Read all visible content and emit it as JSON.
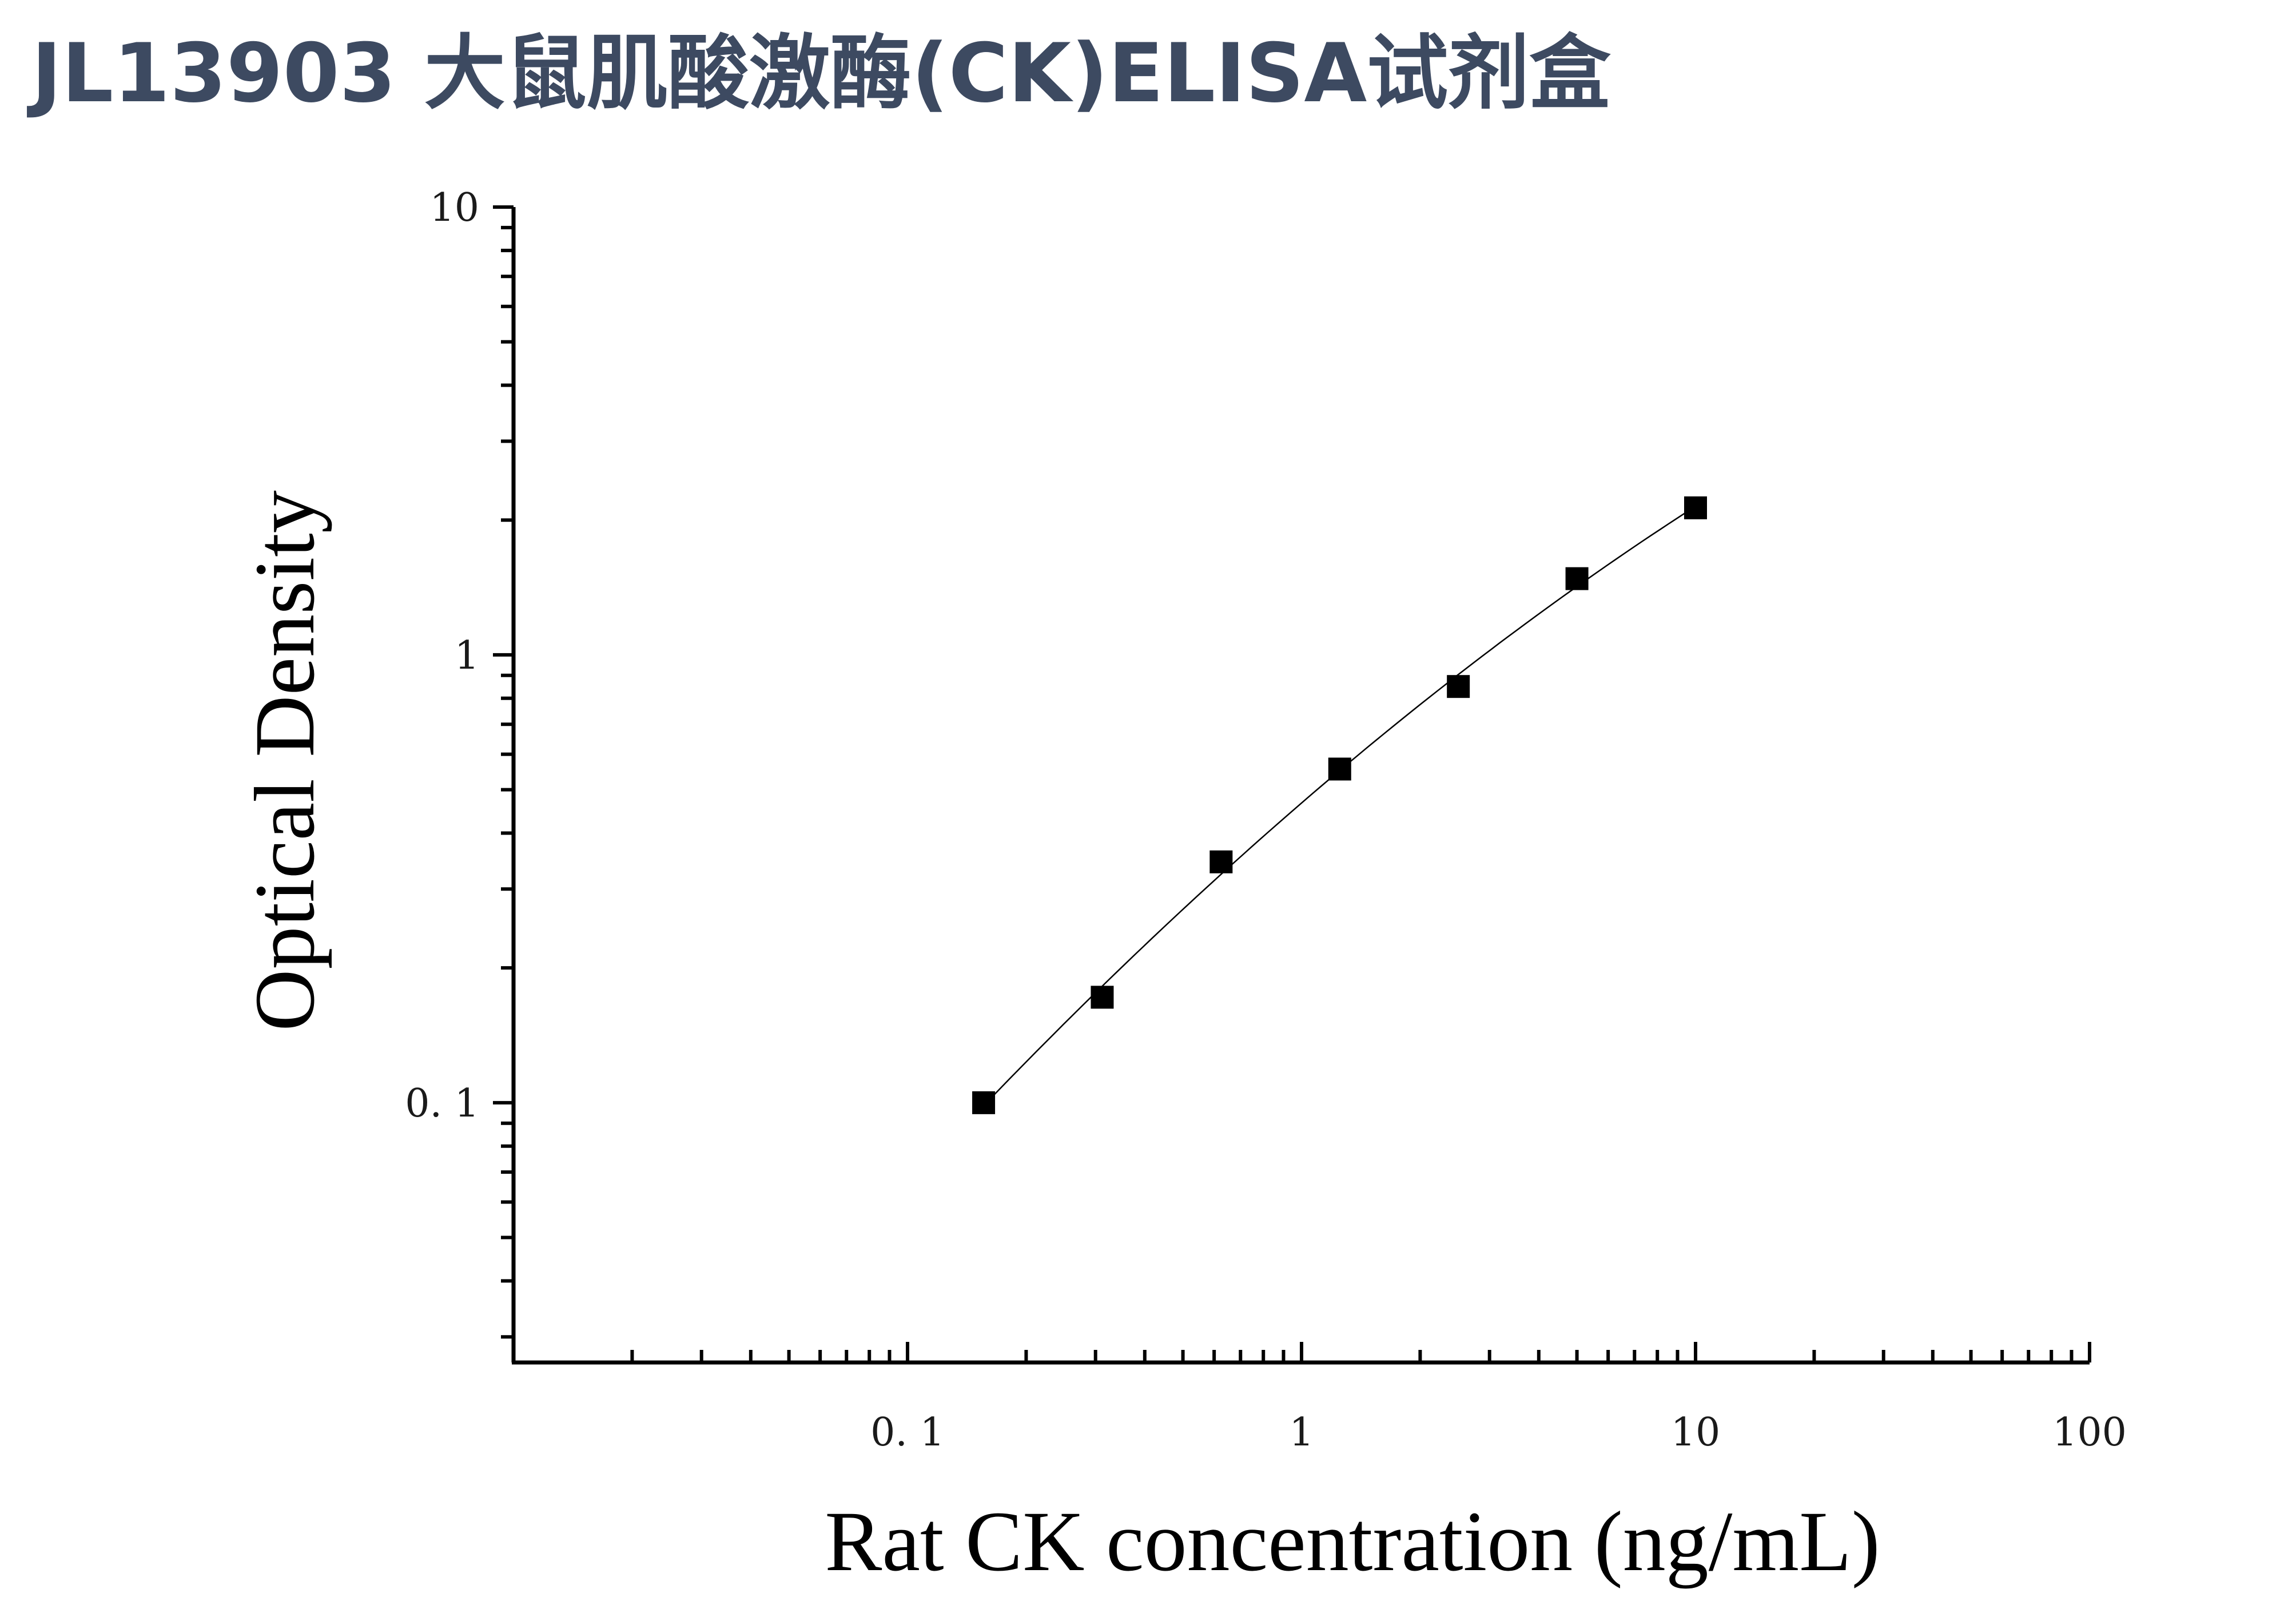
{
  "title": "JL13903 大鼠肌酸激酶(CK)ELISA试剂盒",
  "colors": {
    "title": "#3d4a61",
    "axis": "#000000",
    "marker": "#000000",
    "curve": "#000000"
  },
  "chart_data": {
    "type": "scatter",
    "title": "JL13903 大鼠肌酸激酶(CK)ELISA试剂盒",
    "xlabel": "Rat CK concentration (ng/mL)",
    "ylabel": "Optical Density",
    "xscale": "log",
    "yscale": "log",
    "xlim": [
      0.01,
      100
    ],
    "ylim": [
      0.0263,
      10
    ],
    "x_ticks": [
      {
        "value": 0.1,
        "label": "0. 1"
      },
      {
        "value": 1,
        "label": "1"
      },
      {
        "value": 10,
        "label": "10"
      },
      {
        "value": 100,
        "label": "100"
      }
    ],
    "y_ticks": [
      {
        "value": 0.1,
        "label": "0. 1"
      },
      {
        "value": 1,
        "label": "1"
      },
      {
        "value": 10,
        "label": "10"
      }
    ],
    "grid": false,
    "legend": "none",
    "series": [
      {
        "marker": "square",
        "points": [
          {
            "x": 0.156,
            "y": 0.1
          },
          {
            "x": 0.312,
            "y": 0.172
          },
          {
            "x": 0.625,
            "y": 0.345
          },
          {
            "x": 1.25,
            "y": 0.556
          },
          {
            "x": 2.5,
            "y": 0.85
          },
          {
            "x": 5,
            "y": 1.48
          },
          {
            "x": 10,
            "y": 2.13
          }
        ],
        "fit_curve": true
      }
    ]
  }
}
